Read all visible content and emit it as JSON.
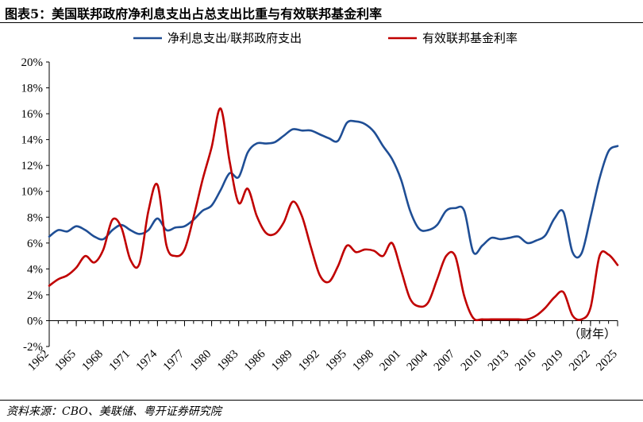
{
  "figure": {
    "title": "图表5：美国联邦政府净利息支出占总支出比重与有效联邦基金利率",
    "source": "资料来源：CBO、美联储、粤开证券研究院",
    "unit_note": "（财年）"
  },
  "chart_data": {
    "type": "line",
    "xlabel": "",
    "ylabel": "",
    "xlim": [
      1962,
      2025
    ],
    "ylim": [
      -2,
      20
    ],
    "y_ticks": [
      -2,
      0,
      2,
      4,
      6,
      8,
      10,
      12,
      14,
      16,
      18,
      20
    ],
    "y_tick_labels": [
      "-2%",
      "0%",
      "2%",
      "4%",
      "6%",
      "8%",
      "10%",
      "12%",
      "14%",
      "16%",
      "18%",
      "20%"
    ],
    "x_ticks": [
      1962,
      1965,
      1968,
      1971,
      1974,
      1977,
      1980,
      1983,
      1986,
      1989,
      1992,
      1995,
      1998,
      2001,
      2004,
      2007,
      2010,
      2013,
      2016,
      2019,
      2022,
      2025
    ],
    "x_tick_labels": [
      "1962",
      "1965",
      "1968",
      "1971",
      "1974",
      "1977",
      "1980",
      "1983",
      "1986",
      "1989",
      "1992",
      "1995",
      "1998",
      "2001",
      "2004",
      "2007",
      "2010",
      "2013",
      "2016",
      "2019",
      "2022",
      "2025"
    ],
    "grid": false,
    "legend_position": "top",
    "x": [
      1962,
      1963,
      1964,
      1965,
      1966,
      1967,
      1968,
      1969,
      1970,
      1971,
      1972,
      1973,
      1974,
      1975,
      1976,
      1977,
      1978,
      1979,
      1980,
      1981,
      1982,
      1983,
      1984,
      1985,
      1986,
      1987,
      1988,
      1989,
      1990,
      1991,
      1992,
      1993,
      1994,
      1995,
      1996,
      1997,
      1998,
      1999,
      2000,
      2001,
      2002,
      2003,
      2004,
      2005,
      2006,
      2007,
      2008,
      2009,
      2010,
      2011,
      2012,
      2013,
      2014,
      2015,
      2016,
      2017,
      2018,
      2019,
      2020,
      2021,
      2022,
      2023,
      2024,
      2025
    ],
    "series": [
      {
        "name": "净利息支出/联邦政府支出",
        "color": "#1f4e95",
        "values": [
          6.5,
          7.0,
          6.9,
          7.3,
          7.0,
          6.5,
          6.3,
          7.0,
          7.4,
          7.0,
          6.7,
          7.0,
          7.9,
          7.0,
          7.2,
          7.3,
          7.8,
          8.5,
          8.9,
          10.1,
          11.4,
          11.1,
          13.0,
          13.7,
          13.7,
          13.8,
          14.3,
          14.8,
          14.7,
          14.7,
          14.4,
          14.1,
          13.9,
          15.3,
          15.4,
          15.2,
          14.6,
          13.5,
          12.5,
          10.9,
          8.5,
          7.1,
          7.0,
          7.4,
          8.5,
          8.7,
          8.5,
          5.3,
          5.8,
          6.4,
          6.3,
          6.4,
          6.5,
          6.0,
          6.2,
          6.6,
          7.9,
          8.4,
          5.3,
          5.2,
          8.0,
          11.0,
          13.1,
          13.5
        ]
      },
      {
        "name": "有效联邦基金利率",
        "color": "#c00000",
        "values": [
          2.7,
          3.2,
          3.5,
          4.1,
          5.0,
          4.5,
          5.5,
          7.8,
          7.2,
          4.7,
          4.4,
          8.5,
          10.5,
          5.8,
          5.0,
          5.5,
          8.0,
          10.9,
          13.4,
          16.4,
          12.3,
          9.1,
          10.2,
          8.1,
          6.8,
          6.7,
          7.6,
          9.2,
          8.1,
          5.7,
          3.5,
          3.0,
          4.2,
          5.8,
          5.3,
          5.5,
          5.4,
          5.0,
          6.0,
          3.9,
          1.7,
          1.1,
          1.4,
          3.2,
          5.0,
          5.0,
          1.9,
          0.2,
          0.1,
          0.1,
          0.1,
          0.1,
          0.1,
          0.1,
          0.4,
          1.0,
          1.8,
          2.2,
          0.4,
          0.1,
          1.0,
          5.0,
          5.1,
          4.3
        ]
      }
    ]
  }
}
